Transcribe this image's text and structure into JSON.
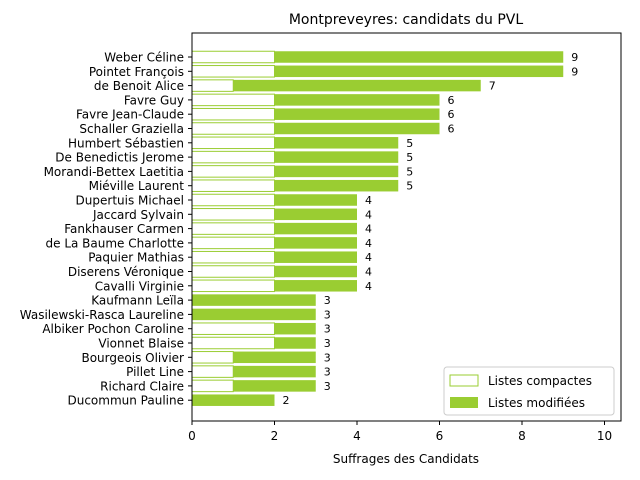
{
  "chart_data": {
    "type": "bar",
    "orientation": "horizontal",
    "stacked": true,
    "title": "Montpreveyres: candidats du PVL",
    "xlabel": "Suffrages des Candidats",
    "ylabel": "",
    "xlim": [
      0,
      10.4
    ],
    "xticks": [
      0,
      2,
      4,
      6,
      8,
      10
    ],
    "grid": false,
    "legend_position": "lower-right",
    "colors": {
      "compactes": "#9ACD32",
      "modifiees": "#9ACD32"
    },
    "categories": [
      "Weber Céline",
      "Pointet François",
      "de Benoit Alice",
      "Favre Guy",
      "Favre Jean-Claude",
      "Schaller Graziella",
      "Humbert Sébastien",
      "De Benedictis Jerome",
      "Morandi-Bettex Laetitia",
      "Miéville Laurent",
      "Dupertuis Michael",
      "Jaccard Sylvain",
      "Fankhauser Carmen",
      "de La Baume Charlotte",
      "Paquier Mathias",
      "Diserens Véronique",
      "Cavalli Virginie",
      "Kaufmann Leïla",
      "Wasilewski-Rasca Laureline",
      "Albiker Pochon Caroline",
      "Vionnet Blaise",
      "Bourgeois Olivier",
      "Pillet Line",
      "Richard Claire",
      "Ducommun Pauline"
    ],
    "series": [
      {
        "name": "Listes compactes",
        "values": [
          2,
          2,
          1,
          2,
          2,
          2,
          2,
          2,
          2,
          2,
          2,
          2,
          2,
          2,
          2,
          2,
          2,
          0,
          0,
          2,
          2,
          1,
          1,
          1,
          0
        ]
      },
      {
        "name": "Listes modifiées",
        "values": [
          7,
          7,
          6,
          4,
          4,
          4,
          3,
          3,
          3,
          3,
          2,
          2,
          2,
          2,
          2,
          2,
          2,
          3,
          3,
          1,
          1,
          2,
          2,
          2,
          2
        ]
      }
    ],
    "totals": [
      9,
      9,
      7,
      6,
      6,
      6,
      5,
      5,
      5,
      5,
      4,
      4,
      4,
      4,
      4,
      4,
      4,
      3,
      3,
      3,
      3,
      3,
      3,
      3,
      2
    ]
  }
}
